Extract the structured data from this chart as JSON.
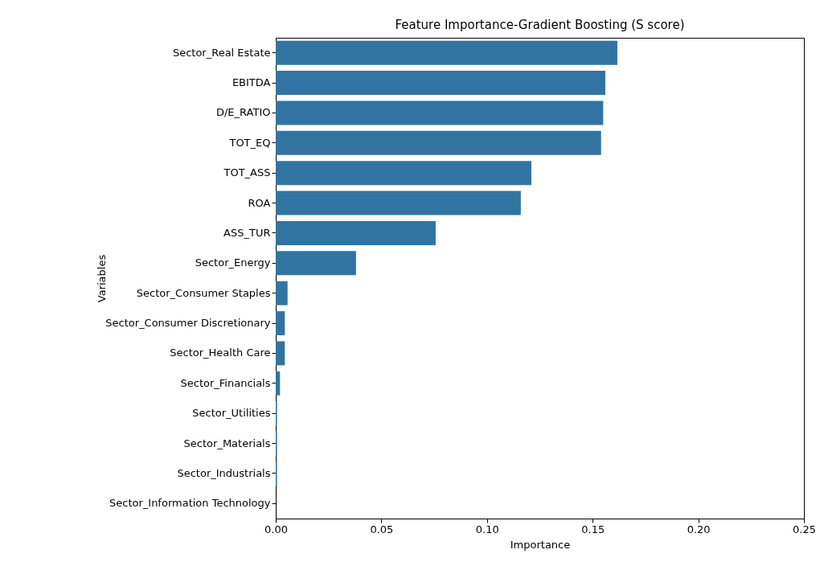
{
  "chart_data": {
    "type": "bar",
    "orientation": "horizontal",
    "title": "Feature Importance-Gradient Boosting (S score)",
    "xlabel": "Importance",
    "ylabel": "Variables",
    "categories": [
      "Sector_Real Estate",
      "EBITDA",
      "D/E_RATIO",
      "TOT_EQ",
      "TOT_ASS",
      "ROA",
      "ASS_TUR",
      "Sector_Energy",
      "Sector_Consumer Staples",
      "Sector_Consumer Discretionary",
      "Sector_Health Care",
      "Sector_Financials",
      "Sector_Utilities",
      "Sector_Materials",
      "Sector_Industrials",
      "Sector_Information Technology"
    ],
    "values": [
      0.1617,
      0.156,
      0.155,
      0.154,
      0.121,
      0.116,
      0.0757,
      0.038,
      0.0056,
      0.0043,
      0.0043,
      0.002,
      0.0006,
      0.0006,
      0.0006,
      0
    ],
    "color": "#3274a1",
    "xlim": [
      0,
      0.25
    ],
    "xticks": [
      {
        "value": 0,
        "label": "0.00"
      },
      {
        "value": 0.05,
        "label": "0.05"
      },
      {
        "value": 0.1,
        "label": "0.10"
      },
      {
        "value": 0.15,
        "label": "0.15"
      },
      {
        "value": 0.2,
        "label": "0.20"
      },
      {
        "value": 0.25,
        "label": "0.25"
      }
    ],
    "grid": false
  }
}
